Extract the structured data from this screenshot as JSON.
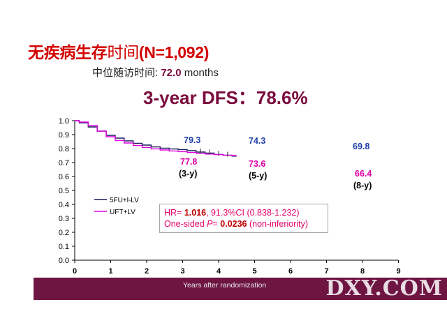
{
  "header": {
    "title_cn": "无疾病生存",
    "title_cn_thin": "时间",
    "title_n": "(N=1,092)",
    "median_label": "中位随访时间: ",
    "median_value": "72.0",
    "median_unit": " months",
    "dfs_label": "3-year DFS",
    "dfs_sep": "：",
    "dfs_value": "78.6%"
  },
  "hr_box": {
    "line1_prefix": "HR= ",
    "hr_value": "1.016",
    "line1_rest": ", 91.3%CI (0.838-1.232)",
    "line2_prefix": "One-sided ",
    "p_symbol": "P",
    "p_eq": "= ",
    "p_value": "0.0236",
    "line2_rest": " (non-inferiority)"
  },
  "footer": {
    "xlabel": "Years after randomization",
    "watermark": "DXY.COM"
  },
  "chart_data": {
    "type": "line",
    "xlabel": "Years after randomization",
    "ylabel": "",
    "xlim": [
      0,
      9
    ],
    "ylim": [
      0.0,
      1.0
    ],
    "x_ticks": [
      "0",
      "1",
      "2",
      "3",
      "4",
      "5",
      "6",
      "7",
      "8",
      "9"
    ],
    "y_ticks": [
      "0.0",
      "0.1",
      "0.2",
      "0.3",
      "0.4",
      "0.5",
      "0.6",
      "0.7",
      "0.8",
      "0.9",
      "1.0"
    ],
    "legend_position": "lower-left",
    "series": [
      {
        "name": "5FU+l-LV",
        "color": "#1a1a5e",
        "x": [
          0,
          0.25,
          0.5,
          0.75,
          1.0,
          1.25,
          1.5,
          1.75,
          2.0,
          2.25,
          2.5,
          2.75,
          3.0,
          3.25,
          3.5,
          3.75,
          4.0,
          4.25,
          4.5
        ],
        "y": [
          1.0,
          0.985,
          0.955,
          0.925,
          0.895,
          0.875,
          0.855,
          0.838,
          0.825,
          0.812,
          0.803,
          0.797,
          0.793,
          0.785,
          0.775,
          0.768,
          0.758,
          0.752,
          0.746
        ]
      },
      {
        "name": "UFT+LV",
        "color": "#e000e0",
        "x": [
          0,
          0.25,
          0.5,
          0.75,
          1.0,
          1.25,
          1.5,
          1.75,
          2.0,
          2.25,
          2.5,
          2.75,
          3.0,
          3.25,
          3.5,
          3.75,
          4.0,
          4.25,
          4.5
        ],
        "y": [
          1.0,
          0.99,
          0.965,
          0.925,
          0.885,
          0.858,
          0.84,
          0.822,
          0.808,
          0.798,
          0.79,
          0.783,
          0.778,
          0.772,
          0.766,
          0.761,
          0.757,
          0.753,
          0.75
        ]
      }
    ],
    "annotations": [
      {
        "x": 3,
        "label": "79.3",
        "color": "#1f3fa8",
        "y_value": 0.793,
        "text_above": true
      },
      {
        "x": 3,
        "label": "77.8",
        "color": "#e000a8",
        "y_value": 0.778
      },
      {
        "x": 3,
        "label": "(3-y)",
        "color": "#000000"
      },
      {
        "x": 5,
        "label": "74.3",
        "color": "#1f3fa8"
      },
      {
        "x": 5,
        "label": "73.6",
        "color": "#e000a8"
      },
      {
        "x": 5,
        "label": "(5-y)",
        "color": "#000000"
      },
      {
        "x": 8,
        "label": "69.8",
        "color": "#1f3fa8"
      },
      {
        "x": 8,
        "label": "66.4",
        "color": "#e000a8"
      },
      {
        "x": 8,
        "label": "(8-y)",
        "color": "#000000"
      }
    ]
  }
}
